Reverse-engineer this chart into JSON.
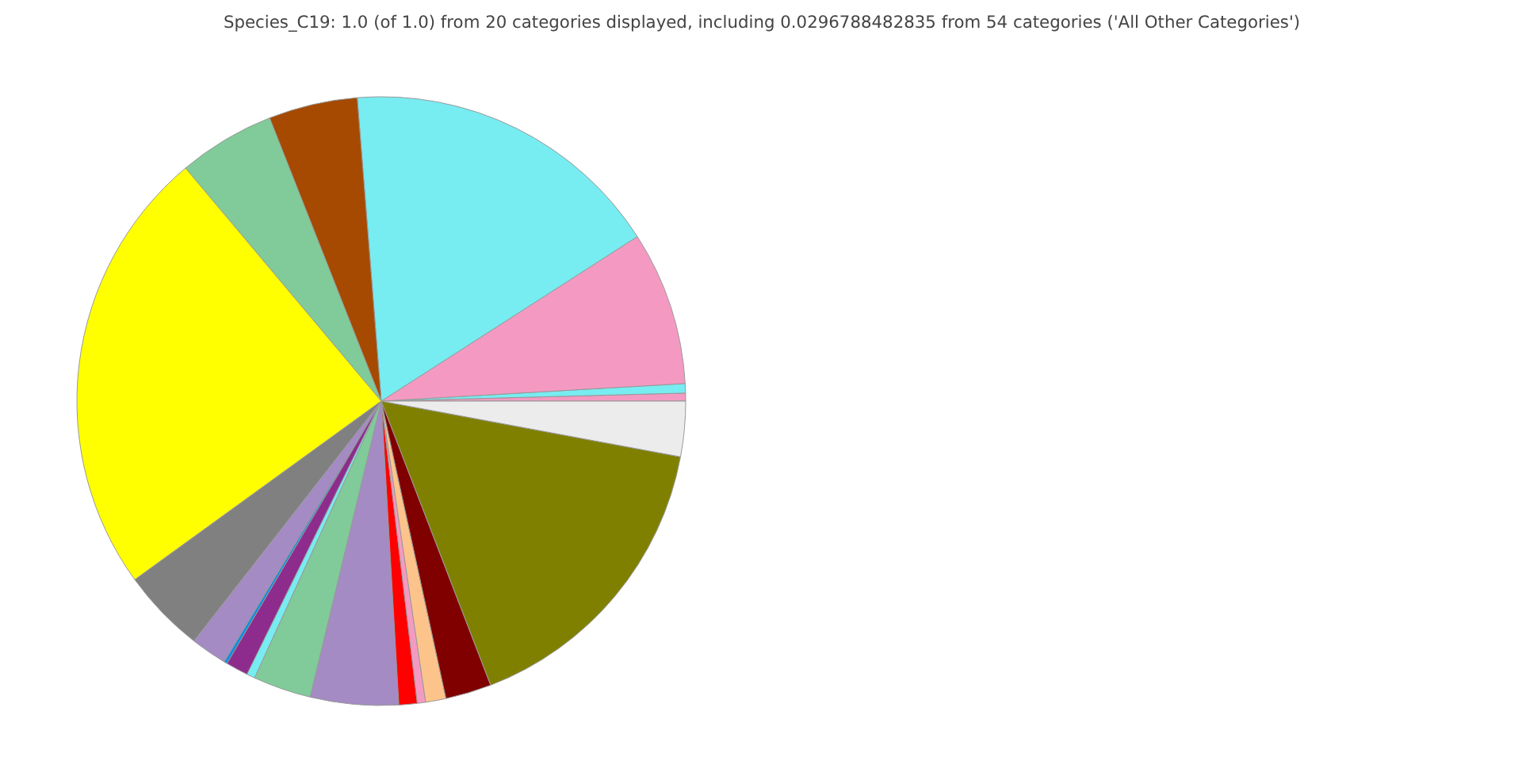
{
  "chart_data": {
    "type": "pie",
    "title": "Species_C19: 1.0 (of 1.0) from 20 categories displayed, including 0.0296788482835 from 54 categories ('All Other Categories')",
    "categories": [
      null,
      null,
      null,
      null,
      null,
      null,
      null,
      null,
      null,
      null,
      null,
      null,
      null,
      null,
      null,
      null,
      null,
      null,
      null,
      null
    ],
    "values": [
      0.42,
      0.5,
      8.17,
      17.17,
      4.72,
      5.14,
      23.86,
      4.47,
      1.92,
      0.17,
      1.19,
      0.44,
      3.08,
      4.67,
      0.97,
      0.44,
      1.08,
      2.44,
      16.22,
      2.93
    ],
    "colors": [
      "#f49ac2",
      "#77ecf1",
      "#f49ac2",
      "#77ecf1",
      "#a54a00",
      "#80cb99",
      "#ffff00",
      "#808080",
      "#a48bc4",
      "#0c8fe0",
      "#8e2c8e",
      "#77ecf1",
      "#80cb99",
      "#a48bc4",
      "#ff0000",
      "#f49ac2",
      "#fcc48b",
      "#800000",
      "#808000",
      "#ececec"
    ]
  }
}
